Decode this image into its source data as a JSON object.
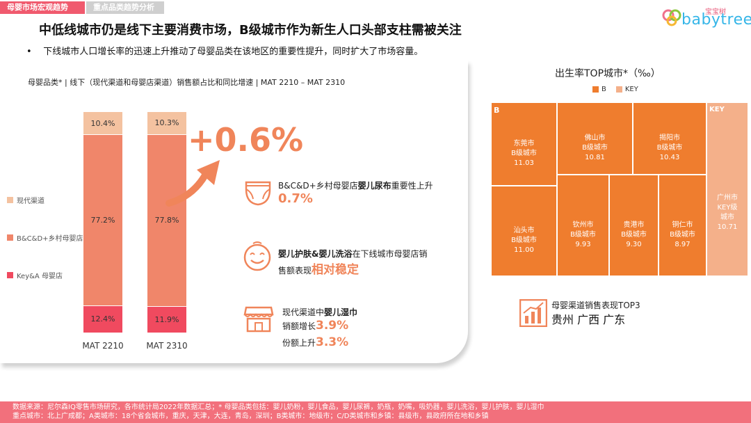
{
  "tabs": {
    "tab1": "母婴市场宏观趋势",
    "tab2": "重点品类趋势分析"
  },
  "logo": {
    "sub": "宝宝树",
    "text": "babytree"
  },
  "title": "中低线城市仍是线下主要消费市场，B级城市作为新生人口头部支柱需被关注",
  "bullet": "下线城市人口增长率的迅速上升推动了母婴品类在该地区的重要性提升，同时扩大了市场容量。",
  "left_chart": {
    "title": "母婴品类* | 线下（现代渠道和母婴店渠道）销售额占比和同比增速 | MAT 2210 – MAT 2310",
    "legend": [
      "现代渠道",
      "B&C&D+乡村母婴店",
      "Key&A 母婴店"
    ],
    "colors": {
      "modern": "#f4c2a0",
      "bcd": "#f0866a",
      "keya": "#f04a5f"
    }
  },
  "chart_data": {
    "type": "bar",
    "stacked": true,
    "categories": [
      "MAT 2210",
      "MAT 2310"
    ],
    "series": [
      {
        "name": "Key&A 母婴店",
        "values": [
          12.4,
          11.9
        ],
        "labels": [
          "12.4%",
          "11.9%"
        ]
      },
      {
        "name": "B&C&D+乡村母婴店",
        "values": [
          77.2,
          77.8
        ],
        "labels": [
          "77.2%",
          "77.8%"
        ]
      },
      {
        "name": "现代渠道",
        "values": [
          10.4,
          10.3
        ],
        "labels": [
          "10.4%",
          "10.3%"
        ]
      }
    ]
  },
  "highlight": {
    "big": "+0.6%"
  },
  "features": {
    "f1_text": "B&C&D+乡村母婴店",
    "f1_bold": "婴儿尿布",
    "f1_tail": "重要性上升",
    "f1_val": "0.7%",
    "f2_bold": "婴儿护肤&婴儿洗浴",
    "f2_text": "在下线城市母婴店销",
    "f2_line2": "售额表现",
    "f2_val": "相对稳定",
    "f3_text": "现代渠道中",
    "f3_bold": "婴儿湿巾",
    "f3_l2": "销额增长",
    "f3_v2": "3.9%",
    "f3_l3": "份额上升",
    "f3_v3": "3.3%"
  },
  "right": {
    "title": "出生率TOP城市*（‰）",
    "legend": [
      "B",
      "KEY"
    ],
    "colors": {
      "b": "#ef7d2e",
      "key": "#f4b08a"
    },
    "b_label": "B",
    "key_label": "KEY",
    "cells": [
      {
        "city": "东莞市",
        "tier": "B级城市",
        "value": "11.03"
      },
      {
        "city": "汕头市",
        "tier": "B级城市",
        "value": "11.00"
      },
      {
        "city": "佛山市",
        "tier": "B级城市",
        "value": "10.81"
      },
      {
        "city": "揭阳市",
        "tier": "B级城市",
        "value": "10.43"
      },
      {
        "city": "钦州市",
        "tier": "B级城市",
        "value": "9.93"
      },
      {
        "city": "贵港市",
        "tier": "B级城市",
        "value": "9.30"
      },
      {
        "city": "铜仁市",
        "tier": "B级城市",
        "value": "8.97"
      },
      {
        "city": "广州市",
        "tier": "KEY级城市",
        "value": "10.71"
      }
    ],
    "top3_title": "母婴渠道销售表现TOP3",
    "top3_value": "贵州 广西 广东"
  },
  "footer": {
    "line1": "数据来源：尼尔森IQ零售市场研究，各市统计局2022年数据汇总；* 母婴品类包括：婴儿奶粉，婴儿食品，婴儿尿裤，奶瓶，奶嘴，吸奶器，婴儿洗浴，婴儿护肤，婴儿湿巾",
    "line2": "重点城市：北上广成都；A类城市：18个省会城市，重庆，天津，大连，青岛，深圳；B类城市：地级市；C/D类城市和乡镇：县级市，县政府所在地和乡镇"
  }
}
